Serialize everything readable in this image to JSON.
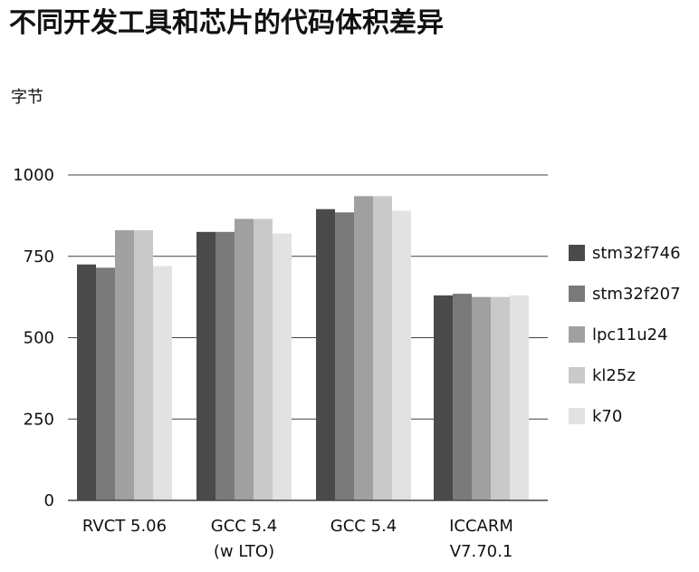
{
  "chart_data": {
    "type": "bar",
    "title": "不同开发工具和芯片的代码体积差异",
    "ylabel": "字节",
    "xlabel": "",
    "ylim": [
      0,
      1000
    ],
    "yticks": [
      0,
      250,
      500,
      750,
      1000
    ],
    "ytick_labels": [
      "0",
      "250",
      "500",
      "750",
      "1000"
    ],
    "grid": true,
    "legend_position": "right",
    "categories": [
      [
        "RVCT 5.06"
      ],
      [
        "GCC 5.4",
        "(w LTO)"
      ],
      [
        "GCC 5.4"
      ],
      [
        "ICCARM",
        "V7.70.1"
      ]
    ],
    "series": [
      {
        "name": "stm32f746",
        "color": "#4a4a4a",
        "values": [
          725,
          825,
          895,
          630
        ]
      },
      {
        "name": "stm32f207",
        "color": "#7a7a7a",
        "values": [
          715,
          825,
          885,
          635
        ]
      },
      {
        "name": "lpc11u24",
        "color": "#a0a0a0",
        "values": [
          830,
          865,
          935,
          625
        ]
      },
      {
        "name": "kl25z",
        "color": "#c9c9c9",
        "values": [
          830,
          865,
          935,
          625
        ]
      },
      {
        "name": "k70",
        "color": "#e2e2e2",
        "values": [
          720,
          820,
          890,
          630
        ]
      }
    ]
  }
}
